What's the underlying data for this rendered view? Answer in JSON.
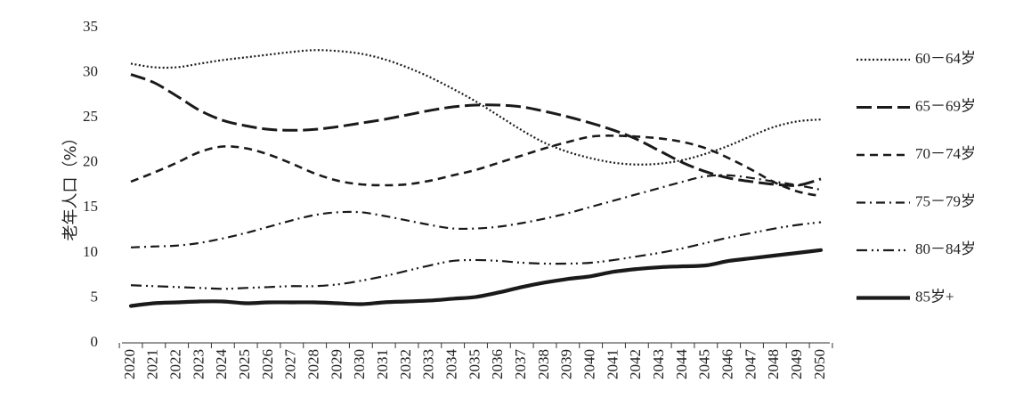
{
  "chart_data": {
    "type": "line",
    "ylabel": "老年人口（%）",
    "ylim": [
      0,
      35
    ],
    "yticks": [
      0,
      5,
      10,
      15,
      20,
      25,
      30,
      35
    ],
    "grid": false,
    "legend_position": "right",
    "x": [
      "2020",
      "2021",
      "2022",
      "2023",
      "2024",
      "2025",
      "2026",
      "2027",
      "2028",
      "2029",
      "2030",
      "2031",
      "2032",
      "2033",
      "2034",
      "2035",
      "2036",
      "2037",
      "2038",
      "2039",
      "2040",
      "2041",
      "2042",
      "2043",
      "2044",
      "2045",
      "2046",
      "2047",
      "2048",
      "2049",
      "2050"
    ],
    "series": [
      {
        "name": "60－64岁",
        "style": "dotted",
        "values": [
          31.0,
          30.6,
          30.6,
          31.0,
          31.4,
          31.7,
          32.0,
          32.3,
          32.5,
          32.4,
          32.1,
          31.5,
          30.6,
          29.5,
          28.2,
          26.8,
          25.2,
          23.6,
          22.2,
          21.2,
          20.5,
          20.0,
          19.8,
          19.9,
          20.3,
          21.0,
          21.9,
          23.0,
          24.0,
          24.6,
          24.8
        ]
      },
      {
        "name": "65－69岁",
        "style": "long-dash",
        "values": [
          29.8,
          28.9,
          27.4,
          25.8,
          24.7,
          24.1,
          23.7,
          23.6,
          23.7,
          24.0,
          24.4,
          24.8,
          25.3,
          25.8,
          26.2,
          26.4,
          26.4,
          26.2,
          25.7,
          25.1,
          24.4,
          23.6,
          22.6,
          21.3,
          20.0,
          19.0,
          18.3,
          17.9,
          17.6,
          17.5,
          18.2
        ]
      },
      {
        "name": "70－74岁",
        "style": "dash",
        "values": [
          17.9,
          18.9,
          20.0,
          21.2,
          21.8,
          21.6,
          20.9,
          19.9,
          18.8,
          18.0,
          17.6,
          17.5,
          17.6,
          18.0,
          18.6,
          19.2,
          20.0,
          20.8,
          21.6,
          22.3,
          22.9,
          23.0,
          22.9,
          22.7,
          22.3,
          21.6,
          20.5,
          19.2,
          17.8,
          16.8,
          16.3
        ]
      },
      {
        "name": "75－79岁",
        "style": "dash-dot",
        "values": [
          10.6,
          10.7,
          10.8,
          11.1,
          11.6,
          12.2,
          12.9,
          13.6,
          14.2,
          14.5,
          14.5,
          14.1,
          13.6,
          13.1,
          12.7,
          12.7,
          12.9,
          13.3,
          13.8,
          14.4,
          15.1,
          15.8,
          16.5,
          17.2,
          17.9,
          18.5,
          18.6,
          18.3,
          17.9,
          17.5,
          17.0
        ]
      },
      {
        "name": "80－84岁",
        "style": "dash-dot-dot",
        "values": [
          6.4,
          6.3,
          6.2,
          6.1,
          6.0,
          6.1,
          6.2,
          6.3,
          6.3,
          6.5,
          6.9,
          7.4,
          8.0,
          8.6,
          9.1,
          9.2,
          9.1,
          8.9,
          8.8,
          8.8,
          8.9,
          9.2,
          9.6,
          10.0,
          10.5,
          11.1,
          11.7,
          12.2,
          12.7,
          13.1,
          13.4
        ]
      },
      {
        "name": "85岁+",
        "style": "solid-bold",
        "values": [
          4.1,
          4.4,
          4.5,
          4.6,
          4.6,
          4.4,
          4.5,
          4.5,
          4.5,
          4.4,
          4.3,
          4.5,
          4.6,
          4.7,
          4.9,
          5.1,
          5.6,
          6.2,
          6.7,
          7.1,
          7.4,
          7.9,
          8.2,
          8.4,
          8.5,
          8.6,
          9.1,
          9.4,
          9.7,
          10.0,
          10.3
        ]
      }
    ]
  },
  "colors": {
    "line": "#1a1a1a",
    "axis": "#333333",
    "text": "#222222"
  }
}
